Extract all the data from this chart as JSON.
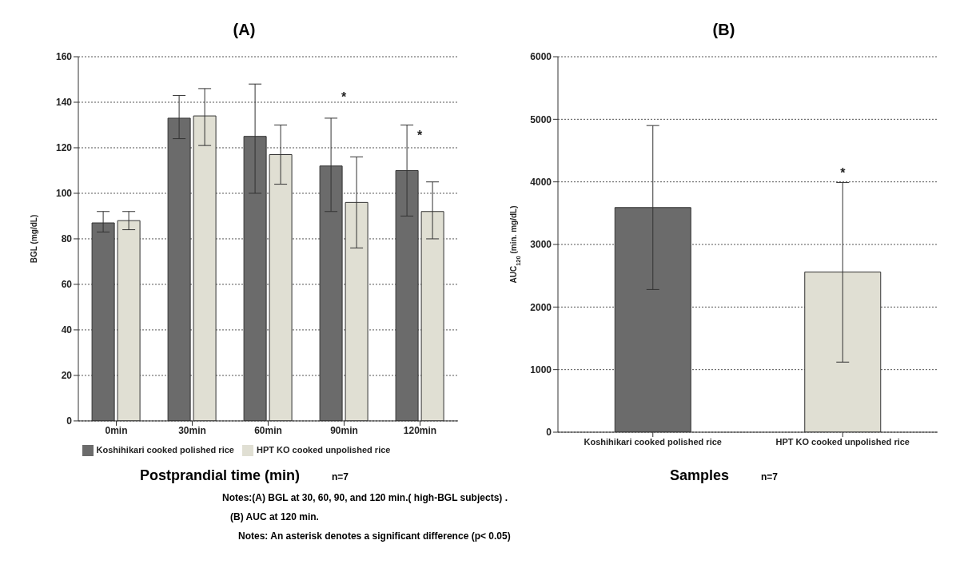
{
  "chart_data": [
    {
      "type": "bar",
      "title": "(A)",
      "xlabel": "Postprandial time (min)",
      "ylabel": "BGL (mg/dL)",
      "categories": [
        "0min",
        "30min",
        "60min",
        "90min",
        "120min"
      ],
      "series": [
        {
          "name": "Koshihikari cooked polished rice",
          "color": "#6b6b6b",
          "values": [
            87,
            133,
            125,
            112,
            110
          ],
          "errors": [
            [
              83,
              92
            ],
            [
              124,
              143
            ],
            [
              100,
              148
            ],
            [
              92,
              133
            ],
            [
              90,
              130
            ]
          ]
        },
        {
          "name": "HPT KO cooked unpolished rice",
          "color": "#e0dfd3",
          "values": [
            88,
            134,
            117,
            96,
            92
          ],
          "errors": [
            [
              84,
              92
            ],
            [
              121,
              146
            ],
            [
              104,
              130
            ],
            [
              76,
              116
            ],
            [
              80,
              105
            ]
          ]
        }
      ],
      "ylim": [
        0,
        160
      ],
      "yticks": [
        0,
        20,
        40,
        60,
        80,
        100,
        120,
        140,
        160
      ],
      "grid": "y",
      "legend": "bottom",
      "annotations": [
        "*",
        "*",
        "n=7",
        "Notes:(A) BGL at 30, 60, 90, and 120 min.( high-BGL subjects) .",
        "(B) AUC at 120 min.",
        "Notes: An  asterisk denotes a significant difference (p< 0.05)"
      ]
    },
    {
      "type": "bar",
      "title": "(B)",
      "xlabel": "Samples",
      "ylabel": "AUC$_{120}$ (min. mg/dL)",
      "categories": [
        "Koshihikari cooked polished rice",
        "HPT KO cooked unpolished rice"
      ],
      "values": [
        3590,
        2560
      ],
      "colors": [
        "#6b6b6b",
        "#e0dfd3"
      ],
      "errors": [
        [
          2280,
          4900
        ],
        [
          1120,
          3990
        ]
      ],
      "ylim": [
        0,
        6000
      ],
      "yticks": [
        0,
        1000,
        2000,
        3000,
        4000,
        5000,
        6000
      ],
      "grid": "y",
      "annotations": [
        {
          "text": "*",
          "y": 4000
        },
        "n=7"
      ]
    }
  ]
}
